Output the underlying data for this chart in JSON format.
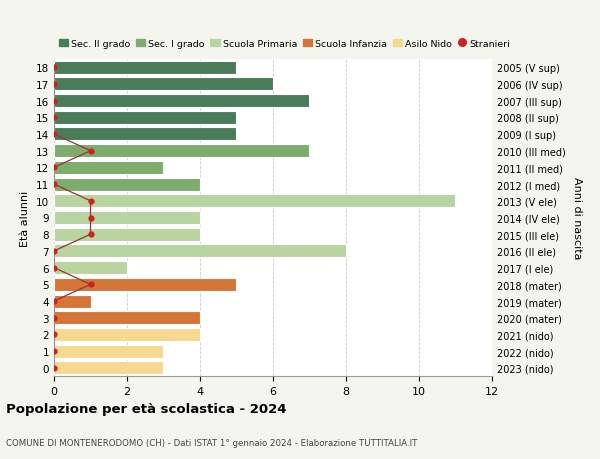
{
  "ages": [
    18,
    17,
    16,
    15,
    14,
    13,
    12,
    11,
    10,
    9,
    8,
    7,
    6,
    5,
    4,
    3,
    2,
    1,
    0
  ],
  "right_labels": [
    "2005 (V sup)",
    "2006 (IV sup)",
    "2007 (III sup)",
    "2008 (II sup)",
    "2009 (I sup)",
    "2010 (III med)",
    "2011 (II med)",
    "2012 (I med)",
    "2013 (V ele)",
    "2014 (IV ele)",
    "2015 (III ele)",
    "2016 (II ele)",
    "2017 (I ele)",
    "2018 (mater)",
    "2019 (mater)",
    "2020 (mater)",
    "2021 (nido)",
    "2022 (nido)",
    "2023 (nido)"
  ],
  "bar_values": [
    5,
    6,
    7,
    5,
    5,
    7,
    3,
    4,
    11,
    4,
    4,
    8,
    2,
    5,
    1,
    4,
    4,
    3,
    3
  ],
  "bar_colors": [
    "#4a7c59",
    "#4a7c59",
    "#4a7c59",
    "#4a7c59",
    "#4a7c59",
    "#7dac6d",
    "#7dac6d",
    "#7dac6d",
    "#b8d4a0",
    "#b8d4a0",
    "#b8d4a0",
    "#b8d4a0",
    "#b8d4a0",
    "#d4763a",
    "#d4763a",
    "#d4763a",
    "#f5d990",
    "#f5d990",
    "#f5d990"
  ],
  "stranieri_values": [
    0,
    0,
    0,
    0,
    0,
    1,
    0,
    0,
    1,
    1,
    1,
    0,
    0,
    1,
    0,
    0,
    0,
    0,
    0
  ],
  "stranieri_color": "#cc2222",
  "stranieri_line_color": "#9b3333",
  "legend_labels": [
    "Sec. II grado",
    "Sec. I grado",
    "Scuola Primaria",
    "Scuola Infanzia",
    "Asilo Nido",
    "Stranieri"
  ],
  "legend_colors": [
    "#4a7c59",
    "#7dac6d",
    "#b8d4a0",
    "#d4763a",
    "#f5d990",
    "#cc2222"
  ],
  "title": "Popolazione per età scolastica - 2024",
  "subtitle": "COMUNE DI MONTENERODOMO (CH) - Dati ISTAT 1° gennaio 2024 - Elaborazione TUTTITALIA.IT",
  "ylabel_left": "Età alunni",
  "ylabel_right": "Anni di nascita",
  "xlim": [
    0,
    12
  ],
  "xticks": [
    0,
    2,
    4,
    6,
    8,
    10,
    12
  ],
  "background_color": "#f5f5f0",
  "bar_background": "#ffffff",
  "grid_color": "#cccccc"
}
